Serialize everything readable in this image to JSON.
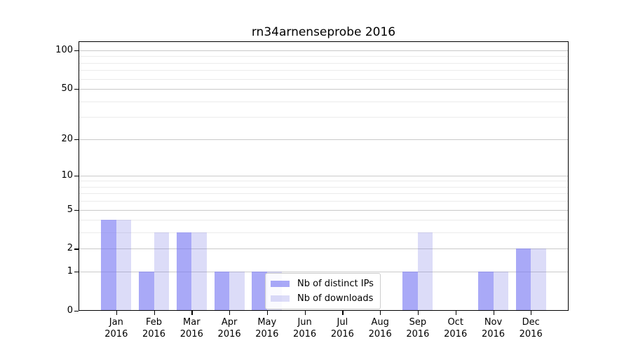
{
  "chart_data": {
    "type": "bar",
    "title": "rn34arnenseprobe 2016",
    "categories": [
      "Jan",
      "Feb",
      "Mar",
      "Apr",
      "May",
      "Jun",
      "Jul",
      "Aug",
      "Sep",
      "Oct",
      "Nov",
      "Dec"
    ],
    "x_tick_year": "2016",
    "series": [
      {
        "name": "Nb of distinct IPs",
        "color": "#a9a9f7",
        "fill": "rgba(120,120,243,0.64)",
        "values": [
          4,
          1,
          3,
          1,
          1,
          0,
          0,
          0,
          1,
          0,
          1,
          2
        ]
      },
      {
        "name": "Nb of downloads",
        "color": "#dcdcf8",
        "fill": "rgba(120,120,228,0.26)",
        "values": [
          4,
          3,
          3,
          1,
          1,
          0,
          0,
          0,
          3,
          0,
          1,
          2
        ]
      }
    ],
    "yscale": "log1p",
    "ylim": [
      0,
      117.5
    ],
    "yticks": [
      0,
      1,
      2,
      5,
      10,
      20,
      50,
      100
    ],
    "minor_yticks": [
      3,
      4,
      6,
      7,
      8,
      9,
      30,
      40,
      60,
      70,
      80,
      90
    ],
    "grid": {
      "major_color": "#c9c9c9",
      "minor_color": "#ebebeb"
    },
    "legend_position": "lower center",
    "axis_color": "#000000"
  }
}
